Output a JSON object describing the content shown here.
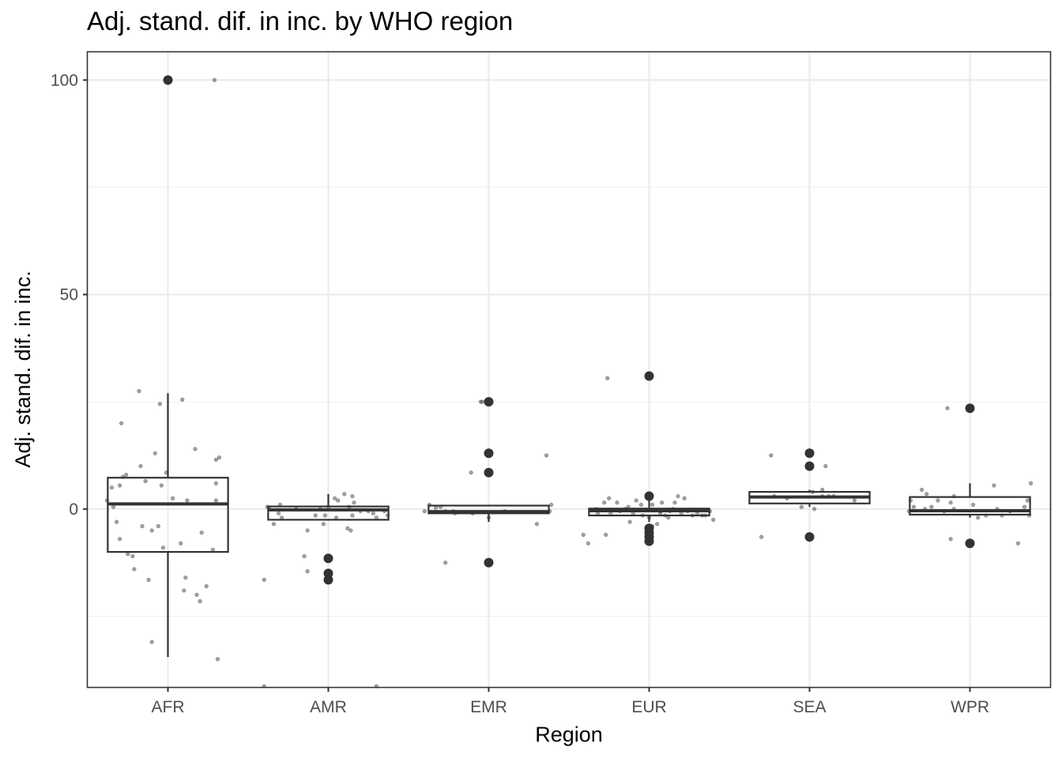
{
  "chart_data": {
    "type": "boxplot",
    "title": "Adj. stand. dif. in inc. by WHO region",
    "xlabel": "Region",
    "ylabel": "Adj. stand. dif. in inc.",
    "categories": [
      "AFR",
      "AMR",
      "EMR",
      "EUR",
      "SEA",
      "WPR"
    ],
    "ylim": [
      -41.5,
      106.5
    ],
    "yticks": [
      0,
      50,
      100
    ],
    "grid": true,
    "boxes": [
      {
        "category": "AFR",
        "q1": -10,
        "median": 1.2,
        "q3": 7.3,
        "whisker_low": -34.5,
        "whisker_high": 27,
        "outliers": [
          100
        ]
      },
      {
        "category": "AMR",
        "q1": -2.5,
        "median": -0.2,
        "q3": 0.6,
        "whisker_low": -2.5,
        "whisker_high": 3.5,
        "outliers": [
          -11.5,
          -15,
          -16.5
        ]
      },
      {
        "category": "EMR",
        "q1": -1,
        "median": -0.6,
        "q3": 0.8,
        "whisker_low": -3,
        "whisker_high": 1,
        "outliers": [
          25,
          13,
          8.5,
          -12.5
        ]
      },
      {
        "category": "EUR",
        "q1": -1.5,
        "median": -0.4,
        "q3": 0.1,
        "whisker_low": -3,
        "whisker_high": 2.5,
        "outliers": [
          31,
          3,
          -4.5,
          -5.5,
          -6.5,
          -7.5
        ]
      },
      {
        "category": "SEA",
        "q1": 1.3,
        "median": 2.8,
        "q3": 4,
        "whisker_low": 0.5,
        "whisker_high": 4.5,
        "outliers": [
          13,
          10,
          -6.5
        ]
      },
      {
        "category": "WPR",
        "q1": -1.3,
        "median": -0.4,
        "q3": 2.8,
        "whisker_low": -2,
        "whisker_high": 6,
        "outliers": [
          23.5,
          -8
        ]
      }
    ],
    "jitter_points": [
      {
        "category": "AFR",
        "points": [
          [
            -0.38,
            2
          ],
          [
            -0.35,
            5
          ],
          [
            -0.34,
            0.5
          ],
          [
            -0.32,
            -3
          ],
          [
            -0.3,
            -7
          ],
          [
            -0.28,
            7.5
          ],
          [
            -0.3,
            5.5
          ],
          [
            -0.29,
            20
          ],
          [
            -0.26,
            8
          ],
          [
            -0.25,
            -10.5
          ],
          [
            -0.22,
            -11
          ],
          [
            -0.21,
            -14
          ],
          [
            -0.18,
            27.5
          ],
          [
            -0.17,
            10
          ],
          [
            -0.16,
            -4
          ],
          [
            -0.14,
            6.5
          ],
          [
            -0.12,
            -16.5
          ],
          [
            -0.1,
            -5
          ],
          [
            -0.1,
            -31
          ],
          [
            -0.08,
            13
          ],
          [
            -0.06,
            -4
          ],
          [
            -0.05,
            24.5
          ],
          [
            -0.04,
            5.5
          ],
          [
            -0.03,
            -9
          ],
          [
            -0.01,
            8.5
          ],
          [
            0.03,
            2.5
          ],
          [
            0.08,
            -8
          ],
          [
            0.09,
            25.5
          ],
          [
            0.1,
            -19
          ],
          [
            0.11,
            -16
          ],
          [
            0.12,
            2
          ],
          [
            0.17,
            14
          ],
          [
            0.18,
            -20
          ],
          [
            0.2,
            -21.5
          ],
          [
            0.21,
            -5.5
          ],
          [
            0.24,
            -18
          ],
          [
            0.28,
            -9.5
          ],
          [
            0.29,
            100
          ],
          [
            0.3,
            11.5
          ],
          [
            0.3,
            6
          ],
          [
            0.3,
            2
          ],
          [
            0.31,
            -35
          ],
          [
            0.32,
            12
          ]
        ]
      },
      {
        "category": "AMR",
        "points": [
          [
            -0.4,
            -16.5
          ],
          [
            -0.38,
            0.5
          ],
          [
            -0.37,
            0.2
          ],
          [
            -0.34,
            -3.5
          ],
          [
            -0.31,
            -1
          ],
          [
            -0.3,
            1
          ],
          [
            -0.29,
            -2
          ],
          [
            -0.2,
            0
          ],
          [
            -0.15,
            -11
          ],
          [
            -0.13,
            -14.5
          ],
          [
            -0.13,
            -5
          ],
          [
            -0.08,
            -1.5
          ],
          [
            -0.05,
            0
          ],
          [
            -0.03,
            -3.5
          ],
          [
            -0.02,
            -1.5
          ],
          [
            0,
            0.5
          ],
          [
            0.04,
            2.5
          ],
          [
            0.05,
            -2
          ],
          [
            0.06,
            2
          ],
          [
            0.1,
            3.5
          ],
          [
            0.12,
            -4.5
          ],
          [
            0.13,
            0.5
          ],
          [
            0.14,
            -5
          ],
          [
            0.15,
            3
          ],
          [
            0.15,
            -1.5
          ],
          [
            0.16,
            1.5
          ],
          [
            0.2,
            -0.5
          ],
          [
            0.25,
            -0.5
          ],
          [
            0.28,
            -1
          ],
          [
            0.3,
            -2
          ],
          [
            0.35,
            -0.5
          ],
          [
            0.37,
            -1.5
          ],
          [
            -0.4,
            -41.5
          ],
          [
            0.3,
            -41.5
          ]
        ]
      },
      {
        "category": "EMR",
        "points": [
          [
            -0.4,
            -0.5
          ],
          [
            -0.37,
            1
          ],
          [
            -0.33,
            0.3
          ],
          [
            -0.3,
            0.5
          ],
          [
            -0.27,
            -12.5
          ],
          [
            -0.27,
            -0.5
          ],
          [
            -0.22,
            -0.5
          ],
          [
            -0.21,
            -1
          ],
          [
            -0.11,
            8.5
          ],
          [
            -0.1,
            -1
          ],
          [
            -0.05,
            25
          ],
          [
            -0.04,
            25
          ],
          [
            0,
            -2
          ],
          [
            0.1,
            -0.5
          ],
          [
            0.3,
            -3.5
          ],
          [
            0.36,
            12.5
          ],
          [
            0.39,
            1
          ],
          [
            0.38,
            -0.5
          ]
        ]
      },
      {
        "category": "EUR",
        "points": [
          [
            -0.41,
            -6
          ],
          [
            -0.38,
            -8
          ],
          [
            -0.33,
            0
          ],
          [
            -0.32,
            -1
          ],
          [
            -0.28,
            1.5
          ],
          [
            -0.27,
            -6
          ],
          [
            -0.25,
            2.5
          ],
          [
            -0.24,
            -1
          ],
          [
            -0.2,
            1.5
          ],
          [
            -0.18,
            -0.5
          ],
          [
            -0.15,
            0
          ],
          [
            -0.13,
            0.5
          ],
          [
            -0.26,
            30.5
          ],
          [
            -0.1,
            -1
          ],
          [
            -0.08,
            2
          ],
          [
            -0.05,
            1
          ],
          [
            -0.04,
            -1.5
          ],
          [
            0,
            -2
          ],
          [
            0.02,
            1
          ],
          [
            0.05,
            -3.5
          ],
          [
            0.07,
            -1
          ],
          [
            0.07,
            -0.5
          ],
          [
            0.08,
            1.5
          ],
          [
            0.1,
            -1.5
          ],
          [
            0.12,
            -2
          ],
          [
            0.13,
            -0.5
          ],
          [
            0.15,
            0
          ],
          [
            0.16,
            1.5
          ],
          [
            0.18,
            3
          ],
          [
            0.2,
            -1
          ],
          [
            0.22,
            2.5
          ],
          [
            0.24,
            -0.5
          ],
          [
            0.27,
            -1.5
          ],
          [
            0.3,
            -1
          ],
          [
            0.33,
            -1.5
          ],
          [
            0.35,
            -1.5
          ],
          [
            0.38,
            -0.5
          ],
          [
            0.4,
            -2.5
          ],
          [
            -0.12,
            -3
          ],
          [
            0.02,
            -4
          ]
        ]
      },
      {
        "category": "SEA",
        "points": [
          [
            -0.3,
            -6.5
          ],
          [
            -0.24,
            12.5
          ],
          [
            -0.22,
            3
          ],
          [
            -0.14,
            2.5
          ],
          [
            -0.05,
            0.5
          ],
          [
            0.02,
            4
          ],
          [
            0.03,
            0
          ],
          [
            0.08,
            3
          ],
          [
            0.08,
            4.5
          ],
          [
            0.1,
            10
          ],
          [
            0.12,
            3
          ],
          [
            0.15,
            3
          ],
          [
            0.28,
            2
          ]
        ]
      },
      {
        "category": "WPR",
        "points": [
          [
            -0.38,
            -0.5
          ],
          [
            -0.37,
            2
          ],
          [
            -0.35,
            0.5
          ],
          [
            -0.3,
            4.5
          ],
          [
            -0.28,
            0
          ],
          [
            -0.27,
            3.5
          ],
          [
            -0.24,
            0.5
          ],
          [
            -0.2,
            2
          ],
          [
            -0.16,
            -0.5
          ],
          [
            -0.14,
            23.5
          ],
          [
            -0.12,
            1.5
          ],
          [
            -0.1,
            3
          ],
          [
            -0.1,
            0
          ],
          [
            -0.12,
            -7
          ],
          [
            0.02,
            1
          ],
          [
            0.05,
            -2
          ],
          [
            0.1,
            -1.5
          ],
          [
            0.15,
            5.5
          ],
          [
            0.17,
            0
          ],
          [
            0.2,
            -1.5
          ],
          [
            0.25,
            -0.5
          ],
          [
            0.3,
            -8
          ],
          [
            0.34,
            0.5
          ],
          [
            0.36,
            2
          ],
          [
            0.37,
            -1.5
          ],
          [
            0.38,
            6
          ]
        ]
      }
    ]
  }
}
